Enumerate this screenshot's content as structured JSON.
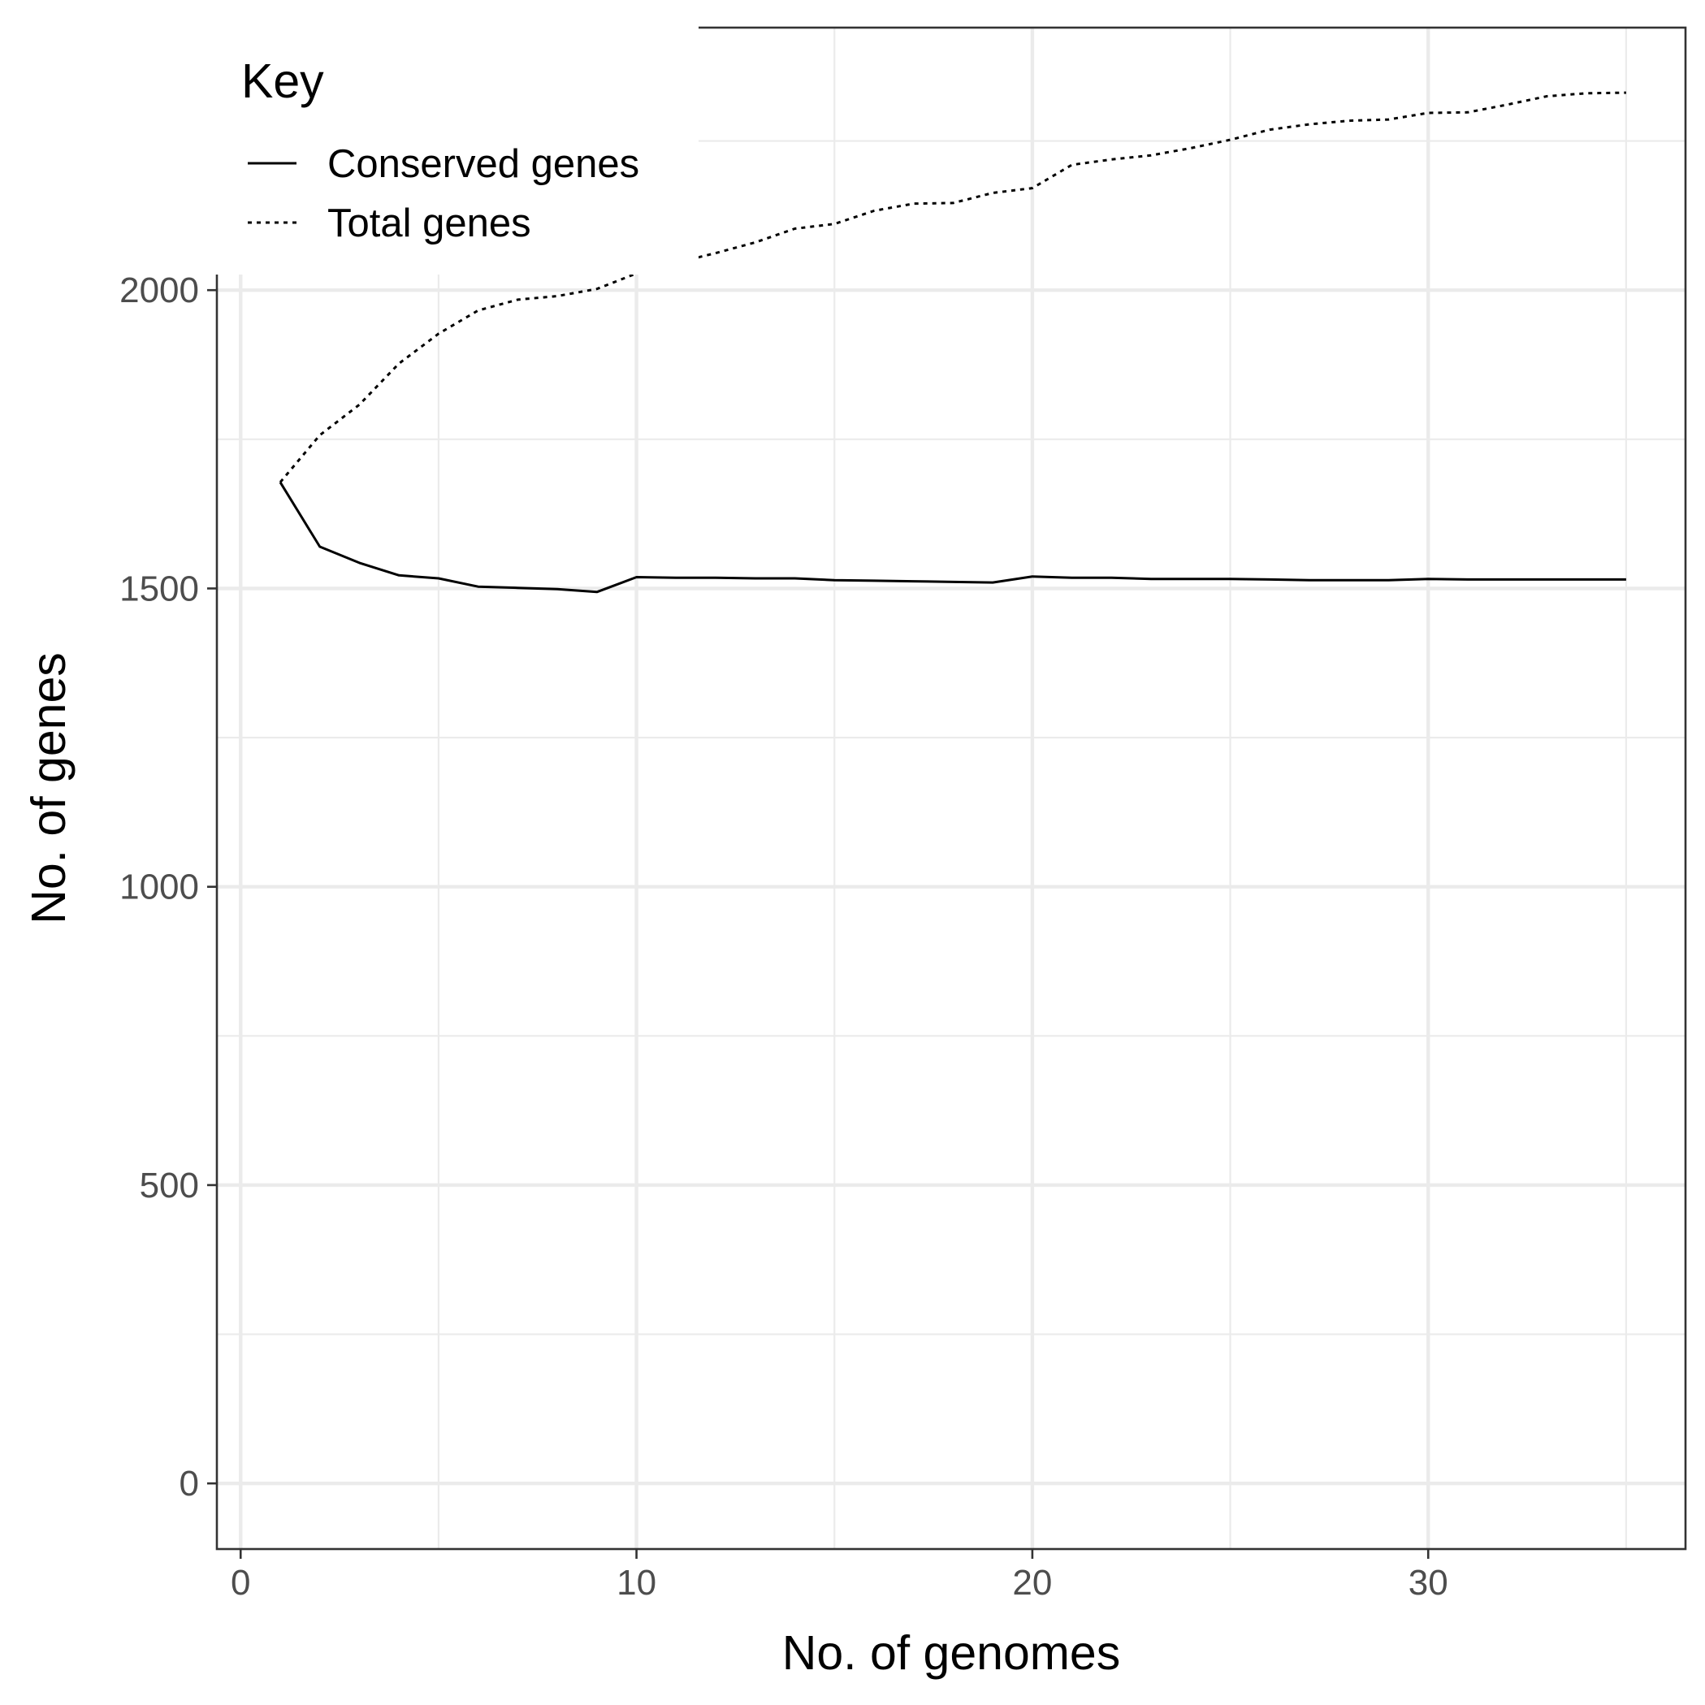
{
  "chart_data": {
    "type": "line",
    "xlabel": "No. of genomes",
    "ylabel": "No. of genes",
    "xlim": [
      -0.6,
      36.5
    ],
    "ylim": [
      -110,
      2440
    ],
    "x_major_ticks": [
      0,
      10,
      20,
      30
    ],
    "x_minor_ticks": [
      5,
      15,
      25,
      35
    ],
    "y_major_ticks": [
      0,
      500,
      1000,
      1500,
      2000
    ],
    "y_minor_ticks": [
      250,
      750,
      1250,
      1750,
      2250
    ],
    "x_tick_labels": [
      "0",
      "10",
      "20",
      "30"
    ],
    "y_tick_labels": [
      "0",
      "500",
      "1000",
      "1500",
      "2000"
    ],
    "grid": true,
    "legend": {
      "title": "Key",
      "position": "top-left",
      "entries": [
        "Conserved genes",
        "Total genes"
      ]
    },
    "series": [
      {
        "name": "Conserved genes",
        "line_style": "solid",
        "x": [
          1,
          2,
          3,
          4,
          5,
          6,
          7,
          8,
          9,
          10,
          11,
          12,
          13,
          14,
          15,
          16,
          17,
          18,
          19,
          20,
          21,
          22,
          23,
          24,
          25,
          26,
          27,
          28,
          29,
          30,
          31,
          32,
          33,
          34,
          35
        ],
        "y": [
          1678,
          1570,
          1543,
          1522,
          1517,
          1503,
          1501,
          1499,
          1494,
          1519,
          1518,
          1518,
          1517,
          1517,
          1514,
          1513,
          1512,
          1511,
          1510,
          1520,
          1518,
          1518,
          1516,
          1516,
          1516,
          1515,
          1514,
          1514,
          1514,
          1516,
          1515,
          1515,
          1515,
          1515,
          1515
        ]
      },
      {
        "name": "Total genes",
        "line_style": "dotted",
        "x": [
          1,
          2,
          3,
          4,
          5,
          6,
          7,
          8,
          9,
          10,
          11,
          12,
          13,
          14,
          15,
          16,
          17,
          18,
          19,
          20,
          21,
          22,
          23,
          24,
          25,
          26,
          27,
          28,
          29,
          30,
          31,
          32,
          33,
          34,
          35
        ],
        "y": [
          1678,
          1757,
          1808,
          1877,
          1927,
          1966,
          1984,
          1990,
          2002,
          2028,
          2046,
          2062,
          2080,
          2103,
          2111,
          2133,
          2145,
          2146,
          2163,
          2171,
          2210,
          2219,
          2226,
          2238,
          2252,
          2269,
          2278,
          2284,
          2286,
          2297,
          2298,
          2311,
          2325,
          2330,
          2331
        ]
      }
    ]
  }
}
